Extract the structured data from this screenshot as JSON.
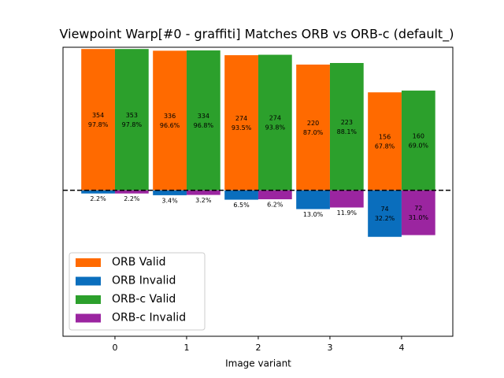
{
  "chart_data": {
    "type": "bar",
    "title": "Viewpoint Warp[#0 - graffiti] Matches ORB vs ORB-c (default_)",
    "x_label": "Image variant",
    "categories": [
      0,
      1,
      2,
      3,
      4
    ],
    "xlim": [
      -0.725,
      4.715
    ],
    "xticks": [
      0,
      1,
      2,
      3,
      4
    ],
    "ylim": [
      -101,
      99
    ],
    "zero_line": true,
    "legend": "lower left",
    "series": [
      {
        "name": "ORB Valid",
        "color": "#ff6a00",
        "values": [
          97.8,
          96.6,
          93.5,
          87.0,
          67.8
        ],
        "counts": [
          354,
          336,
          274,
          220,
          156
        ],
        "value_labels": [
          "97.8%",
          "96.6%",
          "93.5%",
          "87.0%",
          "67.8%"
        ]
      },
      {
        "name": "ORB Invalid",
        "color": "#0a6ebd",
        "values": [
          -2.2,
          -3.4,
          -6.5,
          -13.0,
          -32.2
        ],
        "counts": [
          null,
          null,
          null,
          null,
          74
        ],
        "value_labels": [
          "2.2%",
          "3.4%",
          "6.5%",
          "13.0%",
          "32.2%"
        ]
      },
      {
        "name": "ORB-c Valid",
        "color": "#2ca02c",
        "values": [
          97.8,
          96.8,
          93.8,
          88.1,
          69.0
        ],
        "counts": [
          353,
          334,
          274,
          223,
          160
        ],
        "value_labels": [
          "97.8%",
          "96.8%",
          "93.8%",
          "88.1%",
          "69.0%"
        ]
      },
      {
        "name": "ORB-c Invalid",
        "color": "#9b25a0",
        "values": [
          -2.2,
          -3.2,
          -6.2,
          -11.9,
          -31.0
        ],
        "counts": [
          null,
          null,
          null,
          null,
          72
        ],
        "value_labels": [
          "2.2%",
          "3.2%",
          "6.2%",
          "11.9%",
          "31.0%"
        ]
      }
    ]
  }
}
